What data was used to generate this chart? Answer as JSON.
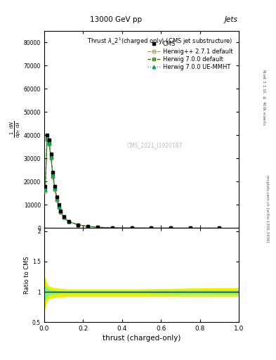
{
  "title_top": "13000 GeV pp",
  "title_right": "Jets",
  "plot_title": "Thrust $\\lambda$_2$^1$(charged only) (CMS jet substructure)",
  "xlabel": "thrust (charged-only)",
  "ylabel_ratio": "Ratio to CMS",
  "right_label_top": "Rivet 3.1.10, $\\geq$ 400k events",
  "right_label_bot": "mcplots.cern.ch [arXiv:1306.3436]",
  "watermark": "CMS_2021_I1920187",
  "ylim_main": [
    0,
    85000
  ],
  "ylim_ratio": [
    0.5,
    2.05
  ],
  "xlim": [
    0,
    1
  ],
  "yticks_main": [
    0,
    10000,
    20000,
    30000,
    40000,
    50000,
    60000,
    70000,
    80000
  ],
  "ytick_labels_main": [
    "0",
    "10000",
    "20000",
    "30000",
    "40000",
    "50000",
    "60000",
    "70000",
    "80000"
  ],
  "yticks_ratio": [
    0.5,
    1.0,
    1.5,
    2.0
  ],
  "ytick_labels_ratio": [
    "0.5",
    "1",
    "1.5",
    "2"
  ],
  "cms_x": [
    0.005,
    0.015,
    0.025,
    0.035,
    0.045,
    0.055,
    0.065,
    0.075,
    0.085,
    0.1,
    0.125,
    0.175,
    0.225,
    0.275,
    0.35,
    0.45,
    0.55,
    0.65,
    0.75,
    0.9
  ],
  "cms_y": [
    18000,
    40000,
    38000,
    32000,
    24000,
    18000,
    13500,
    10000,
    7500,
    5000,
    3000,
    1500,
    800,
    400,
    150,
    60,
    25,
    12,
    5,
    2
  ],
  "herwig271_x": [
    0.005,
    0.015,
    0.025,
    0.035,
    0.045,
    0.055,
    0.065,
    0.075,
    0.085,
    0.1,
    0.125,
    0.175,
    0.225,
    0.275,
    0.35,
    0.45,
    0.55,
    0.65,
    0.75,
    0.9
  ],
  "herwig271_y": [
    16000,
    38000,
    36000,
    30000,
    22000,
    16500,
    12000,
    9000,
    6800,
    4600,
    2800,
    1400,
    750,
    380,
    140,
    55,
    22,
    10,
    4,
    1
  ],
  "herwig700d_x": [
    0.005,
    0.015,
    0.025,
    0.035,
    0.045,
    0.055,
    0.065,
    0.075,
    0.085,
    0.1,
    0.125,
    0.175,
    0.225,
    0.275,
    0.35,
    0.45,
    0.55,
    0.65,
    0.75,
    0.9
  ],
  "herwig700d_y": [
    17000,
    39000,
    37000,
    31000,
    23000,
    17500,
    13000,
    9500,
    7200,
    4800,
    2900,
    1450,
    780,
    390,
    145,
    58,
    23,
    11,
    5,
    1
  ],
  "herwig700ue_x": [
    0.005,
    0.015,
    0.025,
    0.035,
    0.045,
    0.055,
    0.065,
    0.075,
    0.085,
    0.1,
    0.125,
    0.175,
    0.225,
    0.275,
    0.35,
    0.45,
    0.55,
    0.65,
    0.75,
    0.9
  ],
  "herwig700ue_y": [
    16500,
    38500,
    36500,
    30500,
    22500,
    17000,
    12500,
    9200,
    7000,
    4700,
    2850,
    1420,
    760,
    385,
    142,
    56,
    22,
    10,
    4,
    1
  ],
  "color_herwig271": "#cc8833",
  "color_herwig700d": "#226600",
  "color_herwig700ue": "#00aa66",
  "color_cms": "#000000",
  "band_yellow": "#eeee00",
  "band_green": "#88ee88",
  "bg_color": "#ffffff"
}
